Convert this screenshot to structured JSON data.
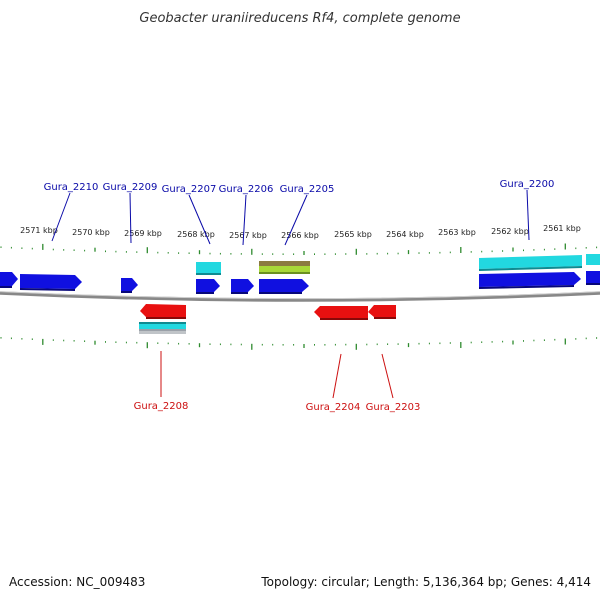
{
  "title": "Geobacter uraniireducens Rf4, complete genome",
  "footer": {
    "accession": "Accession: NC_009483",
    "summary": "Topology: circular; Length: 5,136,364 bp; Genes: 4,414"
  },
  "colors": {
    "forward_gene": "#1010e0",
    "reverse_gene": "#e81010",
    "forward_label": "#0a0aa8",
    "reverse_label": "#cc1010",
    "cds_feature": "#22d8e0",
    "rna_feature": "#a8d838",
    "backbone": "#888888",
    "tick": "#2e8b2e"
  },
  "scale_labels": [
    "2571 kbp",
    "2570 kbp",
    "2569 kbp",
    "2568 kbp",
    "2567 kbp",
    "2566 kbp",
    "2565 kbp",
    "2564 kbp",
    "2563 kbp",
    "2562 kbp",
    "2561 kbp"
  ],
  "gene_labels_forward": [
    "Gura_2210",
    "Gura_2209",
    "Gura_2207",
    "Gura_2206",
    "Gura_2205",
    "Gura_2200"
  ],
  "gene_labels_reverse": [
    "Gura_2208",
    "Gura_2204",
    "Gura_2203"
  ]
}
